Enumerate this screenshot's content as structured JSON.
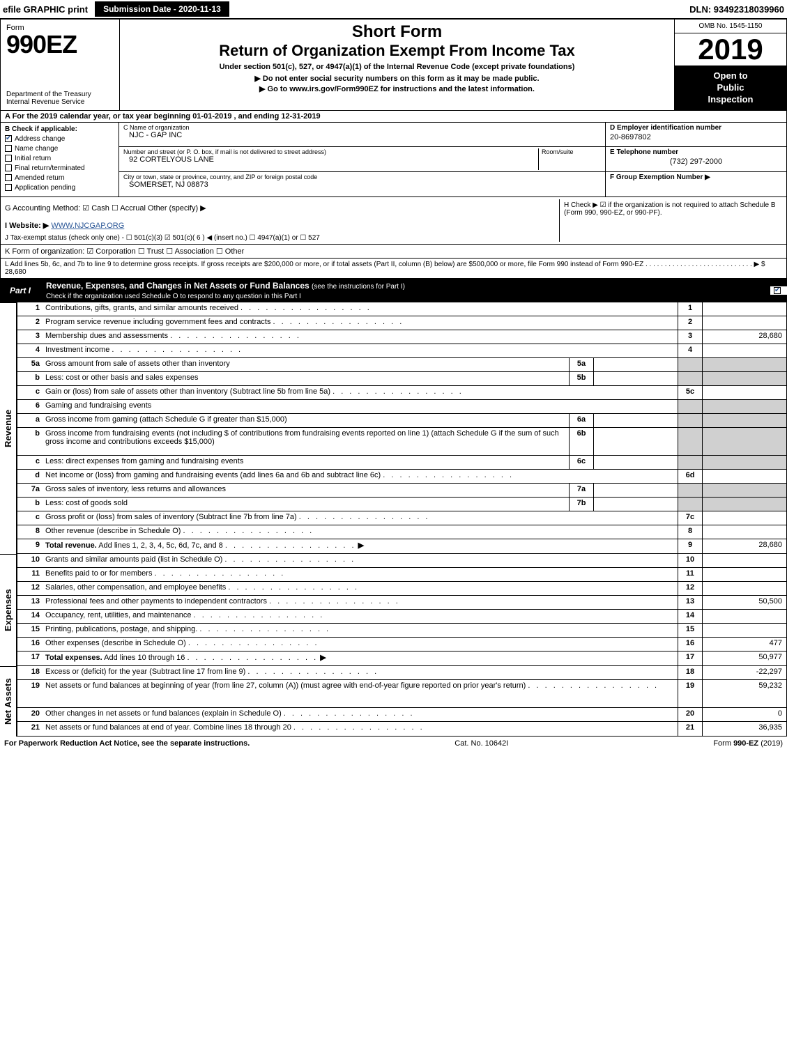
{
  "top": {
    "efile": "efile GRAPHIC print",
    "submission": "Submission Date - 2020-11-13",
    "dln": "DLN: 93492318039960"
  },
  "header": {
    "form_word": "Form",
    "form_number": "990EZ",
    "dept": "Department of the Treasury",
    "irs": "Internal Revenue Service",
    "title_short": "Short Form",
    "title_return": "Return of Organization Exempt From Income Tax",
    "title_under": "Under section 501(c), 527, or 4947(a)(1) of the Internal Revenue Code (except private foundations)",
    "arrow1": "▶ Do not enter social security numbers on this form as it may be made public.",
    "arrow2": "▶ Go to www.irs.gov/Form990EZ for instructions and the latest information.",
    "omb": "OMB No. 1545-1150",
    "year": "2019",
    "inspection_l1": "Open to",
    "inspection_l2": "Public",
    "inspection_l3": "Inspection"
  },
  "A": "A For the 2019 calendar year, or tax year beginning 01-01-2019 , and ending 12-31-2019",
  "B": {
    "label": "B Check if applicable:",
    "items": [
      "Address change",
      "Name change",
      "Initial return",
      "Final return/terminated",
      "Amended return",
      "Application pending"
    ],
    "checked": [
      true,
      false,
      false,
      false,
      false,
      false
    ]
  },
  "C": {
    "name_label": "C Name of organization",
    "name": "NJC - GAP INC",
    "addr_label": "Number and street (or P. O. box, if mail is not delivered to street address)",
    "room_label": "Room/suite",
    "addr": "92 CORTELYOUS LANE",
    "city_label": "City or town, state or province, country, and ZIP or foreign postal code",
    "city": "SOMERSET, NJ  08873"
  },
  "D": {
    "label": "D Employer identification number",
    "val": "20-8697802"
  },
  "E": {
    "label": "E Telephone number",
    "val": "(732) 297-2000"
  },
  "F": {
    "label": "F Group Exemption Number  ▶",
    "val": ""
  },
  "G": "G Accounting Method:   ☑ Cash   ☐ Accrual   Other (specify) ▶",
  "H": "H   Check ▶ ☑ if the organization is not required to attach Schedule B (Form 990, 990-EZ, or 990-PF).",
  "I": {
    "label": "I Website: ▶",
    "val": "WWW.NJCGAP.ORG"
  },
  "J": "J Tax-exempt status (check only one) -  ☐ 501(c)(3)  ☑ 501(c)( 6 ) ◀ (insert no.)  ☐ 4947(a)(1) or  ☐ 527",
  "K": "K Form of organization:   ☑ Corporation   ☐ Trust   ☐ Association   ☐ Other",
  "L": "L Add lines 5b, 6c, and 7b to line 9 to determine gross receipts. If gross receipts are $200,000 or more, or if total assets (Part II, column (B) below) are $500,000 or more, file Form 990 instead of Form 990-EZ  .  .  .  .  .  .  .  .  .  .  .  .  .  .  .  .  .  .  .  .  .  .  .  .  .  .  .  .  ▶ $ 28,680",
  "partI": {
    "tab": "Part I",
    "title": "Revenue, Expenses, and Changes in Net Assets or Fund Balances",
    "sub": "(see the instructions for Part I)",
    "check_text": "Check if the organization used Schedule O to respond to any question in this Part I"
  },
  "rows_revenue": [
    {
      "n": "1",
      "desc": "Contributions, gifts, grants, and similar amounts received",
      "line": "1",
      "amt": ""
    },
    {
      "n": "2",
      "desc": "Program service revenue including government fees and contracts",
      "line": "2",
      "amt": ""
    },
    {
      "n": "3",
      "desc": "Membership dues and assessments",
      "line": "3",
      "amt": "28,680"
    },
    {
      "n": "4",
      "desc": "Investment income",
      "line": "4",
      "amt": ""
    },
    {
      "n": "5a",
      "desc": "Gross amount from sale of assets other than inventory",
      "sub": "5a",
      "subval": "",
      "shaded": true
    },
    {
      "n": "b",
      "desc": "Less: cost or other basis and sales expenses",
      "sub": "5b",
      "subval": "",
      "shaded": true
    },
    {
      "n": "c",
      "desc": "Gain or (loss) from sale of assets other than inventory (Subtract line 5b from line 5a)",
      "line": "5c",
      "amt": ""
    },
    {
      "n": "6",
      "desc": "Gaming and fundraising events",
      "noamt": true,
      "shaded": true
    },
    {
      "n": "a",
      "desc": "Gross income from gaming (attach Schedule G if greater than $15,000)",
      "sub": "6a",
      "subval": "",
      "shaded": true
    },
    {
      "n": "b",
      "desc": "Gross income from fundraising events (not including $                   of contributions from fundraising events reported on line 1) (attach Schedule G if the sum of such gross income and contributions exceeds $15,000)",
      "sub": "6b",
      "subval": "",
      "shaded": true,
      "tall": true
    },
    {
      "n": "c",
      "desc": "Less: direct expenses from gaming and fundraising events",
      "sub": "6c",
      "subval": "",
      "shaded": true
    },
    {
      "n": "d",
      "desc": "Net income or (loss) from gaming and fundraising events (add lines 6a and 6b and subtract line 6c)",
      "line": "6d",
      "amt": ""
    },
    {
      "n": "7a",
      "desc": "Gross sales of inventory, less returns and allowances",
      "sub": "7a",
      "subval": "",
      "shaded": true
    },
    {
      "n": "b",
      "desc": "Less: cost of goods sold",
      "sub": "7b",
      "subval": "",
      "shaded": true
    },
    {
      "n": "c",
      "desc": "Gross profit or (loss) from sales of inventory (Subtract line 7b from line 7a)",
      "line": "7c",
      "amt": ""
    },
    {
      "n": "8",
      "desc": "Other revenue (describe in Schedule O)",
      "line": "8",
      "amt": ""
    },
    {
      "n": "9",
      "desc": "Total revenue. Add lines 1, 2, 3, 4, 5c, 6d, 7c, and 8",
      "line": "9",
      "amt": "28,680",
      "bold": true,
      "arrow": true
    }
  ],
  "rows_expenses": [
    {
      "n": "10",
      "desc": "Grants and similar amounts paid (list in Schedule O)",
      "line": "10",
      "amt": ""
    },
    {
      "n": "11",
      "desc": "Benefits paid to or for members",
      "line": "11",
      "amt": ""
    },
    {
      "n": "12",
      "desc": "Salaries, other compensation, and employee benefits",
      "line": "12",
      "amt": ""
    },
    {
      "n": "13",
      "desc": "Professional fees and other payments to independent contractors",
      "line": "13",
      "amt": "50,500"
    },
    {
      "n": "14",
      "desc": "Occupancy, rent, utilities, and maintenance",
      "line": "14",
      "amt": ""
    },
    {
      "n": "15",
      "desc": "Printing, publications, postage, and shipping.",
      "line": "15",
      "amt": ""
    },
    {
      "n": "16",
      "desc": "Other expenses (describe in Schedule O)",
      "line": "16",
      "amt": "477"
    },
    {
      "n": "17",
      "desc": "Total expenses. Add lines 10 through 16",
      "line": "17",
      "amt": "50,977",
      "bold": true,
      "arrow": true
    }
  ],
  "rows_netassets": [
    {
      "n": "18",
      "desc": "Excess or (deficit) for the year (Subtract line 17 from line 9)",
      "line": "18",
      "amt": "-22,297"
    },
    {
      "n": "19",
      "desc": "Net assets or fund balances at beginning of year (from line 27, column (A)) (must agree with end-of-year figure reported on prior year's return)",
      "line": "19",
      "amt": "59,232",
      "tall": true
    },
    {
      "n": "20",
      "desc": "Other changes in net assets or fund balances (explain in Schedule O)",
      "line": "20",
      "amt": "0"
    },
    {
      "n": "21",
      "desc": "Net assets or fund balances at end of year. Combine lines 18 through 20",
      "line": "21",
      "amt": "36,935"
    }
  ],
  "side_labels": {
    "revenue": "Revenue",
    "expenses": "Expenses",
    "netassets": "Net Assets"
  },
  "footer": {
    "left": "For Paperwork Reduction Act Notice, see the separate instructions.",
    "center": "Cat. No. 10642I",
    "right": "Form 990-EZ (2019)"
  }
}
